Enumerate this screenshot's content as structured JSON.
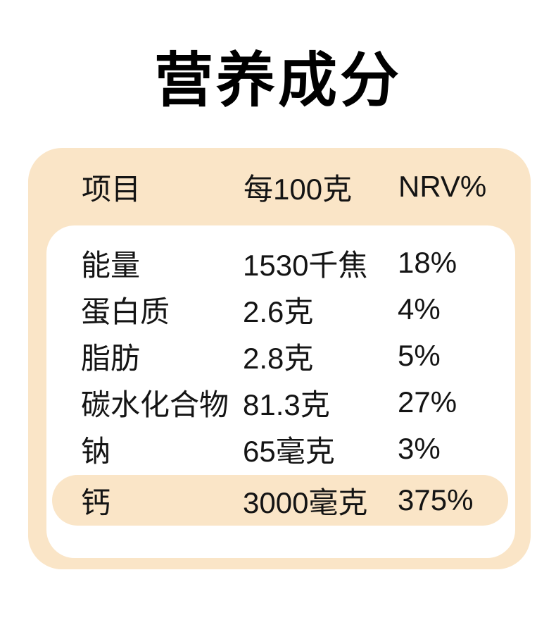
{
  "page": {
    "title": "营养成分"
  },
  "colors": {
    "peach": "#fae5c7",
    "page_bg": "#ffffff",
    "panel_bg": "#ffffff",
    "text": "#141414",
    "title": "#000000"
  },
  "table": {
    "headers": [
      "项目",
      "每100克",
      "NRV%"
    ],
    "rows": [
      {
        "name": "能量",
        "amount": "1530千焦",
        "nrv": "18%",
        "highlight": false
      },
      {
        "name": "蛋白质",
        "amount": "2.6克",
        "nrv": "4%",
        "highlight": false
      },
      {
        "name": "脂肪",
        "amount": "2.8克",
        "nrv": "5%",
        "highlight": false
      },
      {
        "name": "碳水化合物",
        "amount": "81.3克",
        "nrv": "27%",
        "highlight": false
      },
      {
        "name": "钠",
        "amount": "65毫克",
        "nrv": "3%",
        "highlight": false
      },
      {
        "name": "钙",
        "amount": "3000毫克",
        "nrv": "375%",
        "highlight": true
      }
    ]
  }
}
